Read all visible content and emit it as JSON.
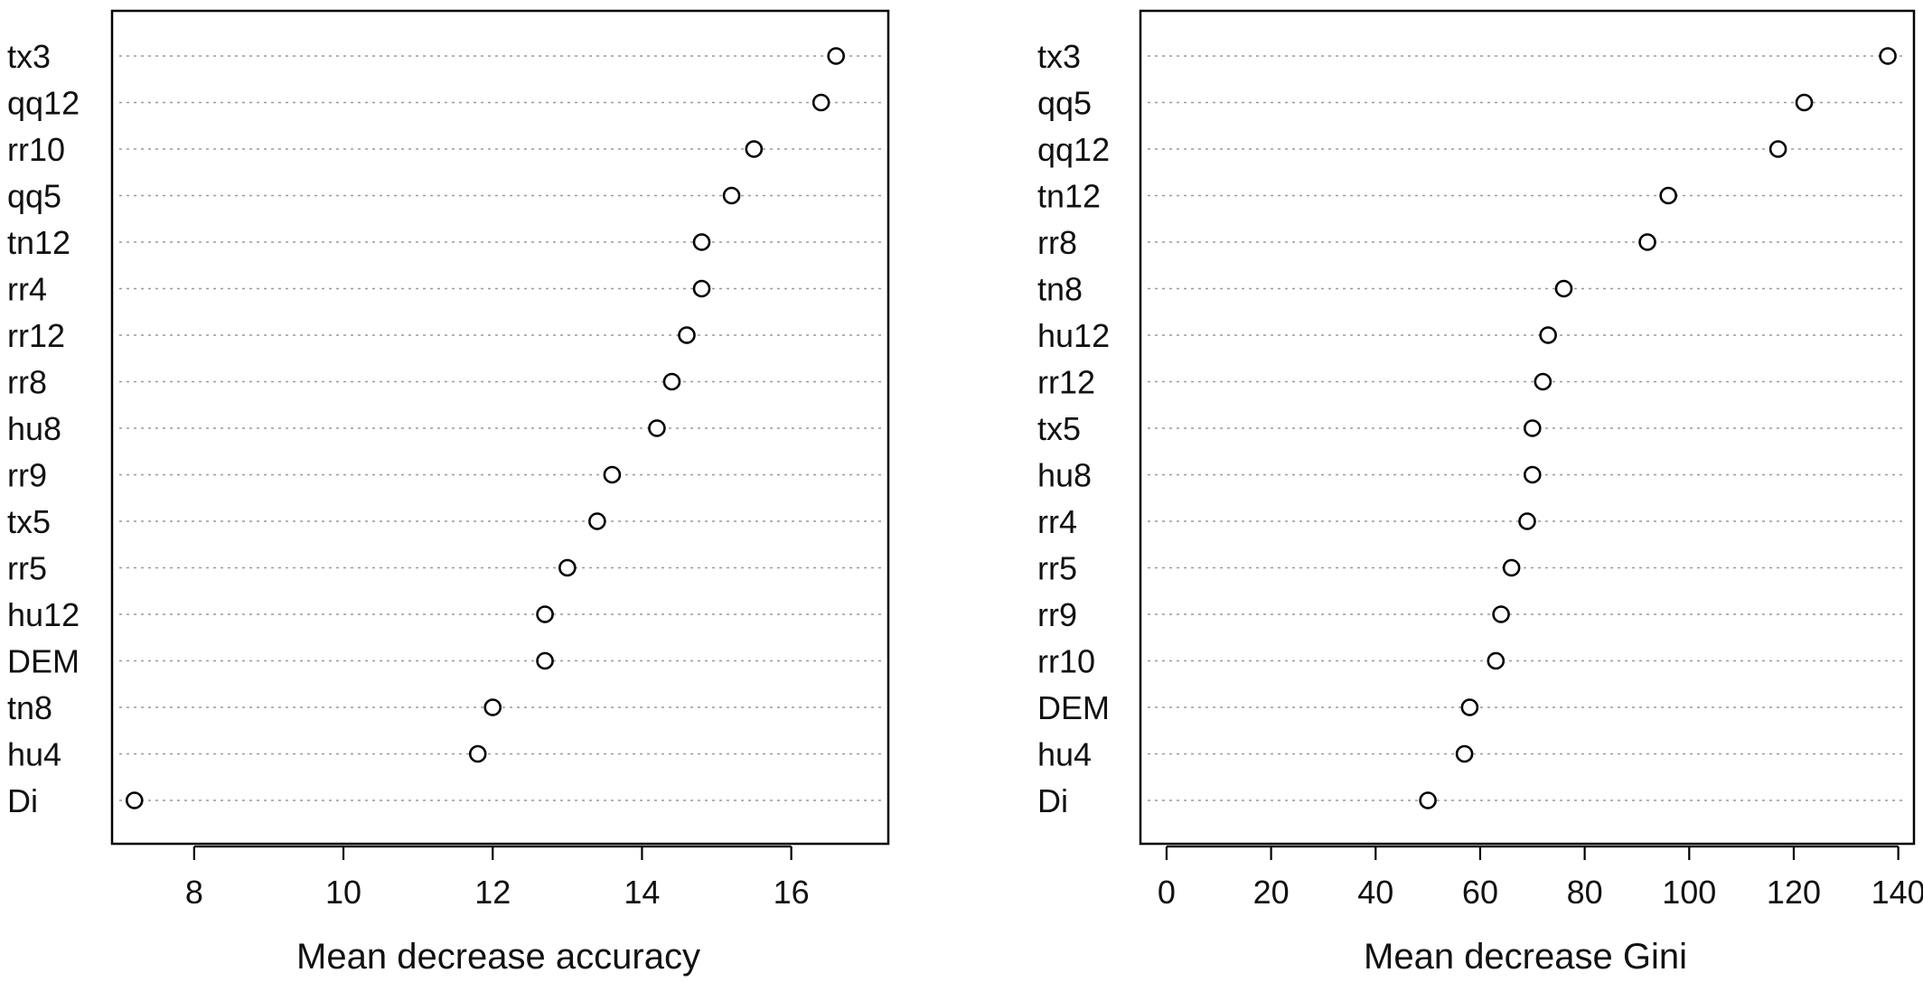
{
  "chart_data": [
    {
      "type": "scatter",
      "title": "",
      "xlabel": "Mean decrease accuracy",
      "ylabel": "",
      "xlim": [
        6.9,
        17.3
      ],
      "xticks": [
        8,
        10,
        12,
        14,
        16
      ],
      "grid": "horizontal dotted",
      "categories": [
        "tx3",
        "qq12",
        "rr10",
        "qq5",
        "tn12",
        "rr4",
        "rr12",
        "rr8",
        "hu8",
        "rr9",
        "tx5",
        "rr5",
        "hu12",
        "DEM",
        "tn8",
        "hu4",
        "Di"
      ],
      "values": [
        16.6,
        16.4,
        15.5,
        15.2,
        14.8,
        14.8,
        14.6,
        14.4,
        14.2,
        13.6,
        13.4,
        13.0,
        12.7,
        12.7,
        12.0,
        11.8,
        7.2
      ]
    },
    {
      "type": "scatter",
      "title": "",
      "xlabel": "Mean decrease Gini",
      "ylabel": "",
      "xlim": [
        -5,
        143
      ],
      "xticks": [
        0,
        20,
        40,
        60,
        80,
        100,
        120,
        140
      ],
      "grid": "horizontal dotted",
      "categories": [
        "tx3",
        "qq5",
        "qq12",
        "tn12",
        "rr8",
        "tn8",
        "hu12",
        "rr12",
        "tx5",
        "hu8",
        "rr4",
        "rr5",
        "rr9",
        "rr10",
        "DEM",
        "hu4",
        "Di"
      ],
      "values": [
        138,
        122,
        117,
        96,
        92,
        76,
        73,
        72,
        70,
        70,
        69,
        66,
        64,
        63,
        58,
        57,
        50
      ]
    }
  ]
}
